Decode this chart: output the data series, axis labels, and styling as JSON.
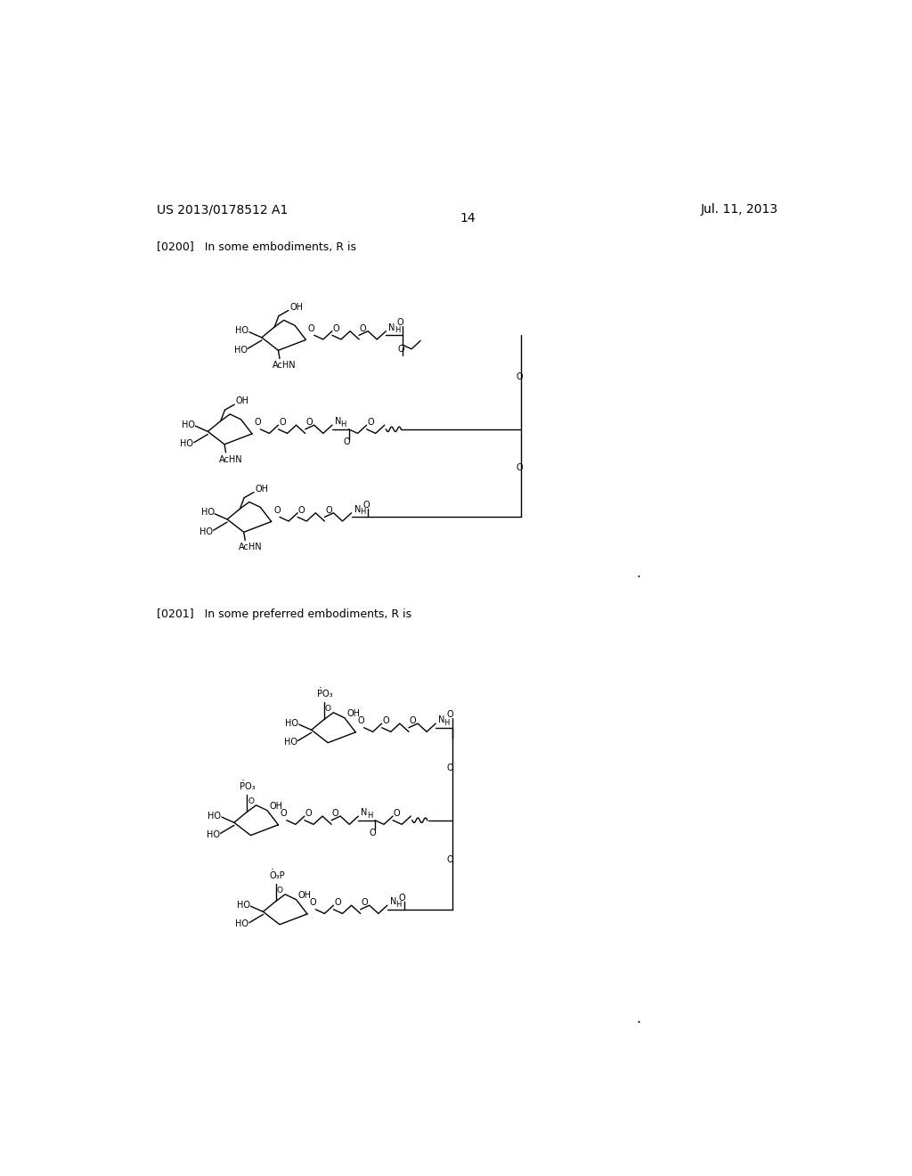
{
  "background_color": "#ffffff",
  "header_left": "US 2013/0178512 A1",
  "header_right": "Jul. 11, 2013",
  "page_number": "14",
  "paragraph_200": "[0200]   In some embodiments, R is",
  "paragraph_201": "[0201]   In some preferred embodiments, R is",
  "font_size_header": 10.5,
  "font_size_para": 9.5,
  "font_size_page": 10.5
}
